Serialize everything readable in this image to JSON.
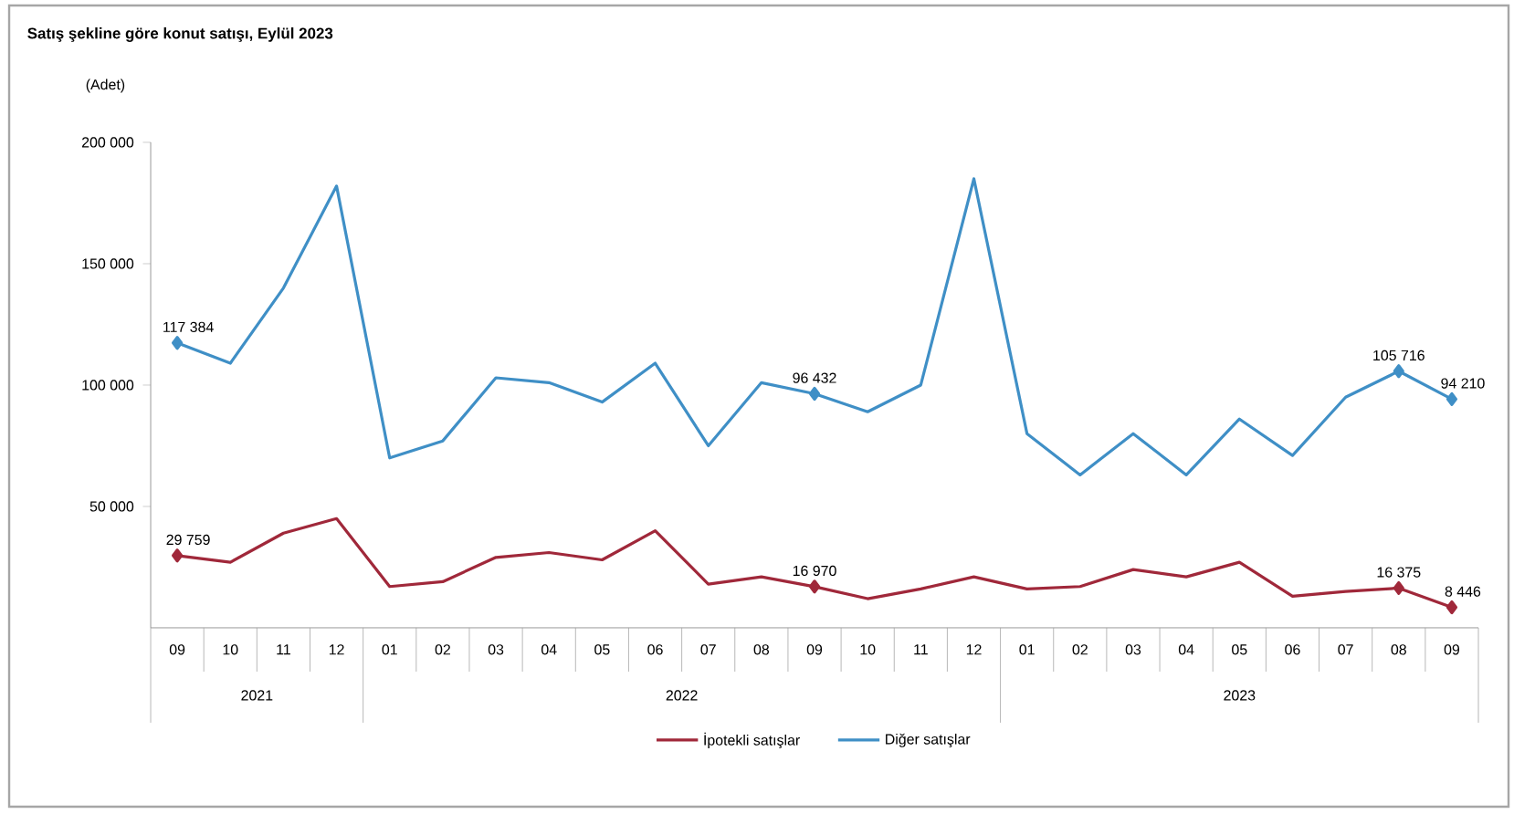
{
  "chart_data": {
    "type": "line",
    "title": "Satış şekline göre konut satışı, Eylül 2023",
    "ylabel": "(Adet)",
    "categories": [
      "09",
      "10",
      "11",
      "12",
      "01",
      "02",
      "03",
      "04",
      "05",
      "06",
      "07",
      "08",
      "09",
      "10",
      "11",
      "12",
      "01",
      "02",
      "03",
      "04",
      "05",
      "06",
      "07",
      "08",
      "09"
    ],
    "annotations": [
      "2021",
      "2022",
      "2023"
    ],
    "ylim": [
      0,
      200000
    ],
    "yticks": [
      {
        "value": 50000,
        "label": "50 000"
      },
      {
        "value": 100000,
        "label": "100 000"
      },
      {
        "value": 150000,
        "label": "150 000"
      },
      {
        "value": 200000,
        "label": "200 000"
      }
    ],
    "legend": "bottom",
    "series": [
      {
        "name": "İpotekli satışlar",
        "color": "#a0283a",
        "values": [
          29759,
          27000,
          39000,
          45000,
          17000,
          19000,
          29000,
          31000,
          28000,
          40000,
          18000,
          21000,
          16970,
          12000,
          16000,
          21000,
          16000,
          17000,
          24000,
          21000,
          27000,
          13000,
          15000,
          16375,
          8446
        ],
        "value_labels": [
          "29 759",
          null,
          null,
          null,
          null,
          null,
          null,
          null,
          null,
          null,
          null,
          null,
          "16 970",
          null,
          null,
          null,
          null,
          null,
          null,
          null,
          null,
          null,
          null,
          "16 375",
          "8 446"
        ]
      },
      {
        "name": "Diğer satışlar",
        "color": "#3f8fc6",
        "values": [
          117384,
          109000,
          140000,
          182000,
          70000,
          77000,
          103000,
          101000,
          93000,
          109000,
          75000,
          101000,
          96432,
          89000,
          100000,
          185000,
          80000,
          63000,
          80000,
          63000,
          86000,
          71000,
          95000,
          105716,
          94210
        ],
        "value_labels": [
          "117 384",
          null,
          null,
          null,
          null,
          null,
          null,
          null,
          null,
          null,
          null,
          null,
          "96 432",
          null,
          null,
          null,
          null,
          null,
          null,
          null,
          null,
          null,
          null,
          "105 716",
          "94 210"
        ]
      }
    ]
  }
}
